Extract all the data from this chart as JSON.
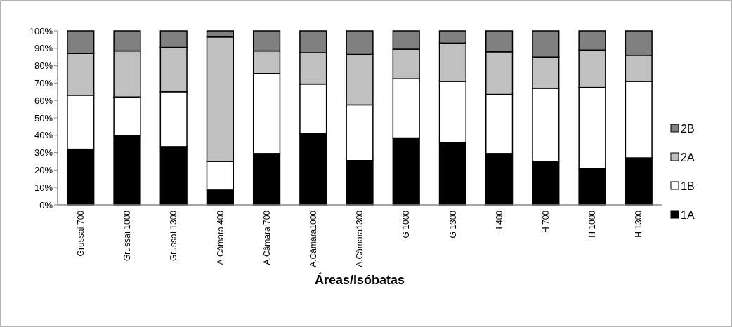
{
  "chart_data": {
    "type": "bar",
    "stacked": true,
    "xlabel": "Áreas/Isóbatas",
    "categories": [
      "Grussaí 700",
      "Grussaí 1000",
      "Grussaí 1300",
      "A.Câmara 400",
      "A.Câmara 700",
      "A.Câmara1000",
      "A.Câmara1300",
      "G 1000",
      "G 1300",
      "H 400",
      "H 700",
      "H 1000",
      "H 1300"
    ],
    "series": [
      {
        "name": "1A",
        "color": "#000000",
        "values": [
          32,
          40,
          33.5,
          8.5,
          29.5,
          41,
          25.5,
          38.5,
          36,
          29.5,
          25,
          21,
          27
        ]
      },
      {
        "name": "1B",
        "color": "#ffffff",
        "values": [
          31,
          22,
          31.5,
          16.5,
          46,
          28.5,
          32,
          34,
          35,
          34,
          42,
          46.5,
          44
        ]
      },
      {
        "name": "2A",
        "color": "#c0c0c0",
        "values": [
          24,
          26.5,
          25.5,
          71.5,
          13,
          18,
          29,
          17,
          22,
          24.5,
          18,
          21.5,
          15
        ]
      },
      {
        "name": "2B",
        "color": "#808080",
        "values": [
          13,
          11.5,
          9.5,
          3.5,
          11.5,
          12.5,
          13.5,
          10.5,
          7,
          12,
          15,
          11,
          14
        ]
      }
    ],
    "ylim": [
      0,
      100
    ],
    "yticks": [
      {
        "value": 0,
        "label": "0%"
      },
      {
        "value": 10,
        "label": "10%"
      },
      {
        "value": 20,
        "label": "20%"
      },
      {
        "value": 30,
        "label": "30%"
      },
      {
        "value": 40,
        "label": "40%"
      },
      {
        "value": 50,
        "label": "50%"
      },
      {
        "value": 60,
        "label": "60%"
      },
      {
        "value": 70,
        "label": "70%"
      },
      {
        "value": 80,
        "label": "80%"
      },
      {
        "value": 90,
        "label": "90%"
      },
      {
        "value": 100,
        "label": "100%"
      }
    ],
    "grid": false,
    "legend": "right"
  }
}
